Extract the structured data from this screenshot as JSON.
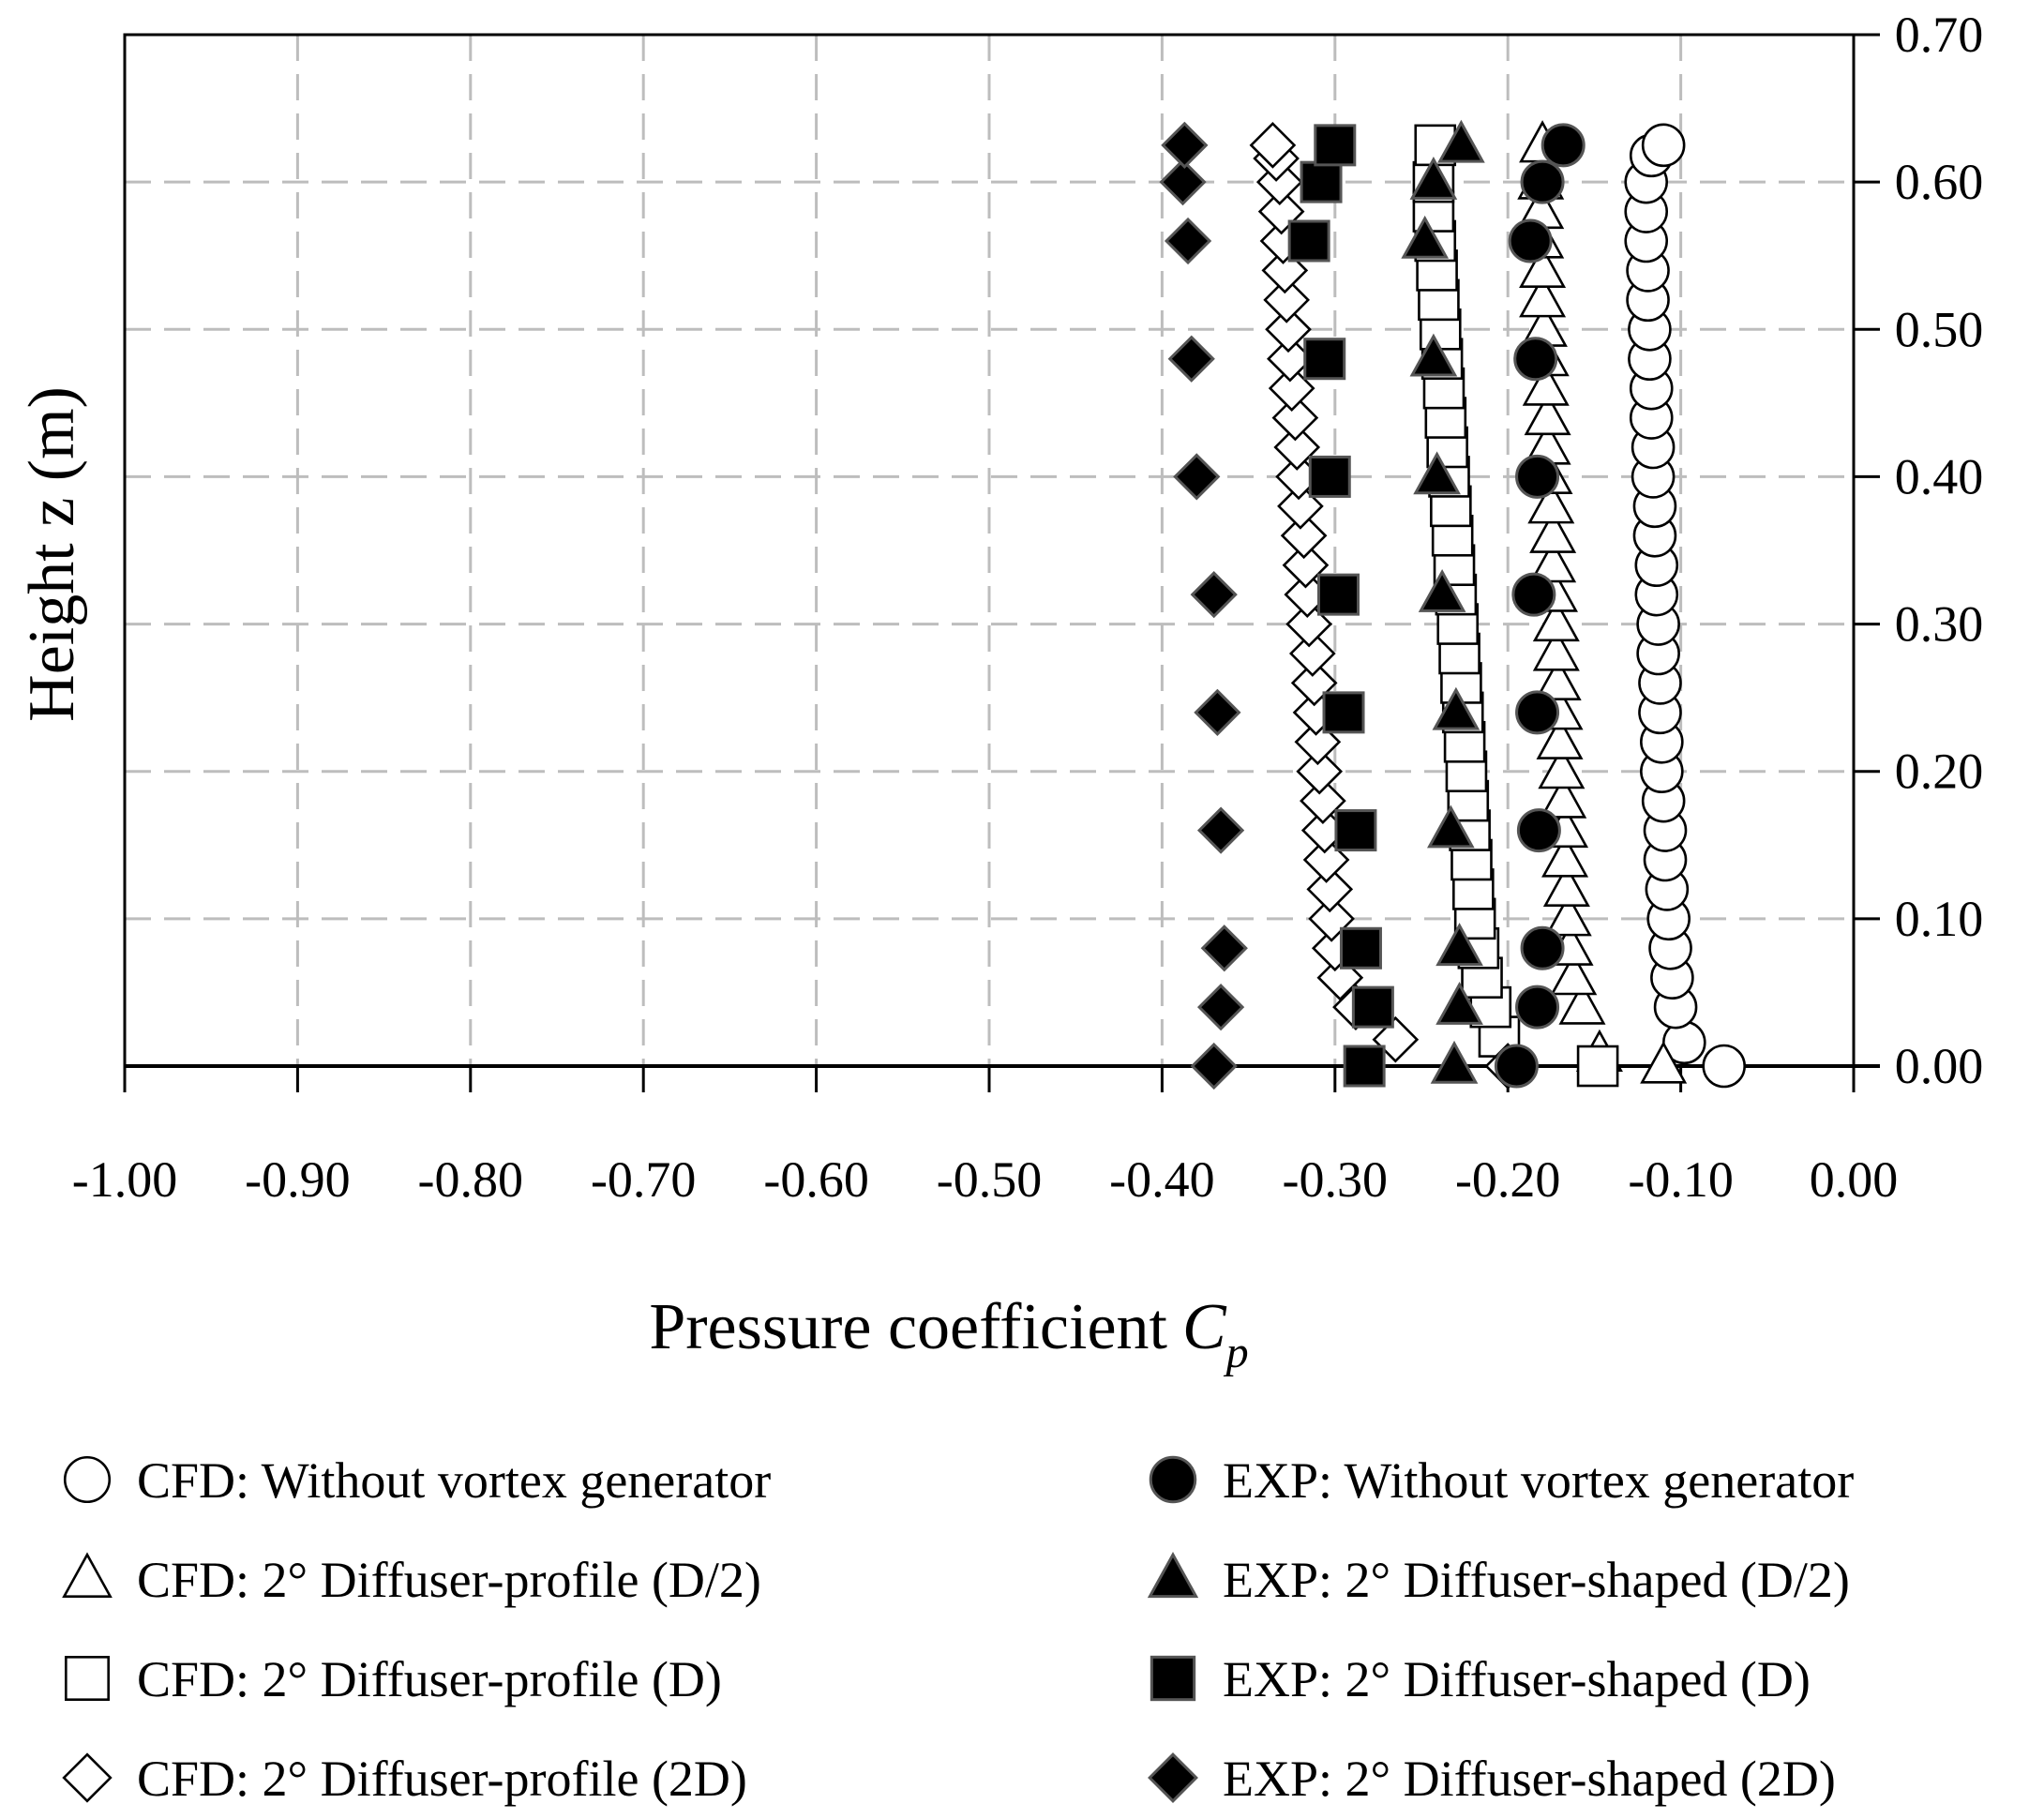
{
  "chart_data": {
    "type": "scatter",
    "title": "",
    "xlabel": "Pressure coefficient",
    "xlabel_symbol": "C",
    "xlabel_subscript": "p",
    "ylabel": "Height z (m)",
    "xlim": [
      -1.0,
      0.0
    ],
    "ylim": [
      0.0,
      0.7
    ],
    "grid": true,
    "y_axis_side": "right",
    "legend_position": "bottom",
    "x_ticks": [
      -1.0,
      -0.9,
      -0.8,
      -0.7,
      -0.6,
      -0.5,
      -0.4,
      -0.3,
      -0.2,
      -0.1,
      0.0
    ],
    "x_tick_labels": [
      "-1.00",
      "-0.90",
      "-0.80",
      "-0.70",
      "-0.60",
      "-0.50",
      "-0.40",
      "-0.30",
      "-0.20",
      "-0.10",
      "0.00"
    ],
    "y_ticks": [
      0.0,
      0.1,
      0.2,
      0.3,
      0.4,
      0.5,
      0.6,
      0.7
    ],
    "y_tick_labels": [
      "0.00",
      "0.10",
      "0.20",
      "0.30",
      "0.40",
      "0.50",
      "0.60",
      "0.70"
    ],
    "series": [
      {
        "name": "CFD: Without vortex generator",
        "marker": "circle",
        "filled": false,
        "points": [
          [
            -0.075,
            0.0
          ],
          [
            -0.098,
            0.016
          ],
          [
            -0.103,
            0.04
          ],
          [
            -0.105,
            0.06
          ],
          [
            -0.106,
            0.08
          ],
          [
            -0.107,
            0.1
          ],
          [
            -0.108,
            0.12
          ],
          [
            -0.109,
            0.14
          ],
          [
            -0.109,
            0.16
          ],
          [
            -0.11,
            0.18
          ],
          [
            -0.111,
            0.2
          ],
          [
            -0.111,
            0.22
          ],
          [
            -0.112,
            0.24
          ],
          [
            -0.112,
            0.26
          ],
          [
            -0.113,
            0.28
          ],
          [
            -0.113,
            0.3
          ],
          [
            -0.114,
            0.32
          ],
          [
            -0.114,
            0.34
          ],
          [
            -0.115,
            0.36
          ],
          [
            -0.115,
            0.38
          ],
          [
            -0.116,
            0.4
          ],
          [
            -0.116,
            0.42
          ],
          [
            -0.117,
            0.44
          ],
          [
            -0.117,
            0.46
          ],
          [
            -0.118,
            0.48
          ],
          [
            -0.118,
            0.5
          ],
          [
            -0.119,
            0.52
          ],
          [
            -0.119,
            0.54
          ],
          [
            -0.12,
            0.56
          ],
          [
            -0.12,
            0.58
          ],
          [
            -0.12,
            0.6
          ],
          [
            -0.117,
            0.618
          ],
          [
            -0.11,
            0.625
          ]
        ]
      },
      {
        "name": "CFD: 2° Diffuser-profile (D/2)",
        "marker": "triangle",
        "filled": false,
        "points": [
          [
            -0.11,
            0.0
          ],
          [
            -0.147,
            0.008
          ],
          [
            -0.157,
            0.04
          ],
          [
            -0.162,
            0.06
          ],
          [
            -0.164,
            0.08
          ],
          [
            -0.165,
            0.1
          ],
          [
            -0.166,
            0.12
          ],
          [
            -0.167,
            0.14
          ],
          [
            -0.167,
            0.16
          ],
          [
            -0.168,
            0.18
          ],
          [
            -0.169,
            0.2
          ],
          [
            -0.17,
            0.22
          ],
          [
            -0.17,
            0.24
          ],
          [
            -0.171,
            0.26
          ],
          [
            -0.172,
            0.28
          ],
          [
            -0.172,
            0.3
          ],
          [
            -0.173,
            0.32
          ],
          [
            -0.174,
            0.34
          ],
          [
            -0.174,
            0.36
          ],
          [
            -0.175,
            0.38
          ],
          [
            -0.176,
            0.4
          ],
          [
            -0.177,
            0.42
          ],
          [
            -0.177,
            0.44
          ],
          [
            -0.178,
            0.46
          ],
          [
            -0.178,
            0.48
          ],
          [
            -0.179,
            0.5
          ],
          [
            -0.18,
            0.52
          ],
          [
            -0.18,
            0.54
          ],
          [
            -0.181,
            0.56
          ],
          [
            -0.181,
            0.58
          ],
          [
            -0.181,
            0.6
          ],
          [
            -0.18,
            0.625
          ]
        ]
      },
      {
        "name": "CFD: 2° Diffuser-profile (D)",
        "marker": "square",
        "filled": false,
        "points": [
          [
            -0.148,
            0.0
          ],
          [
            -0.205,
            0.02
          ],
          [
            -0.21,
            0.04
          ],
          [
            -0.215,
            0.06
          ],
          [
            -0.217,
            0.08
          ],
          [
            -0.219,
            0.1
          ],
          [
            -0.22,
            0.12
          ],
          [
            -0.221,
            0.14
          ],
          [
            -0.222,
            0.16
          ],
          [
            -0.223,
            0.18
          ],
          [
            -0.224,
            0.2
          ],
          [
            -0.225,
            0.22
          ],
          [
            -0.226,
            0.24
          ],
          [
            -0.227,
            0.26
          ],
          [
            -0.228,
            0.28
          ],
          [
            -0.229,
            0.3
          ],
          [
            -0.23,
            0.32
          ],
          [
            -0.231,
            0.34
          ],
          [
            -0.232,
            0.36
          ],
          [
            -0.233,
            0.38
          ],
          [
            -0.234,
            0.4
          ],
          [
            -0.235,
            0.42
          ],
          [
            -0.236,
            0.44
          ],
          [
            -0.237,
            0.46
          ],
          [
            -0.238,
            0.48
          ],
          [
            -0.239,
            0.5
          ],
          [
            -0.24,
            0.52
          ],
          [
            -0.241,
            0.54
          ],
          [
            -0.242,
            0.56
          ],
          [
            -0.243,
            0.58
          ],
          [
            -0.243,
            0.6
          ],
          [
            -0.242,
            0.625
          ]
        ]
      },
      {
        "name": "CFD: 2° Diffuser-profile (2D)",
        "marker": "diamond",
        "filled": false,
        "points": [
          [
            -0.2,
            0.0
          ],
          [
            -0.265,
            0.018
          ],
          [
            -0.288,
            0.04
          ],
          [
            -0.297,
            0.06
          ],
          [
            -0.3,
            0.08
          ],
          [
            -0.302,
            0.1
          ],
          [
            -0.303,
            0.12
          ],
          [
            -0.305,
            0.14
          ],
          [
            -0.306,
            0.16
          ],
          [
            -0.307,
            0.18
          ],
          [
            -0.309,
            0.2
          ],
          [
            -0.31,
            0.22
          ],
          [
            -0.311,
            0.24
          ],
          [
            -0.312,
            0.26
          ],
          [
            -0.313,
            0.28
          ],
          [
            -0.315,
            0.3
          ],
          [
            -0.316,
            0.32
          ],
          [
            -0.317,
            0.34
          ],
          [
            -0.318,
            0.36
          ],
          [
            -0.32,
            0.38
          ],
          [
            -0.321,
            0.4
          ],
          [
            -0.322,
            0.42
          ],
          [
            -0.323,
            0.44
          ],
          [
            -0.325,
            0.46
          ],
          [
            -0.326,
            0.48
          ],
          [
            -0.327,
            0.5
          ],
          [
            -0.328,
            0.52
          ],
          [
            -0.329,
            0.54
          ],
          [
            -0.33,
            0.56
          ],
          [
            -0.331,
            0.58
          ],
          [
            -0.332,
            0.6
          ],
          [
            -0.334,
            0.616
          ],
          [
            -0.336,
            0.625
          ]
        ]
      },
      {
        "name": "EXP: Without vortex generator",
        "marker": "circle",
        "filled": true,
        "points": [
          [
            -0.195,
            0.0
          ],
          [
            -0.183,
            0.04
          ],
          [
            -0.18,
            0.08
          ],
          [
            -0.182,
            0.16
          ],
          [
            -0.183,
            0.24
          ],
          [
            -0.185,
            0.32
          ],
          [
            -0.183,
            0.4
          ],
          [
            -0.184,
            0.48
          ],
          [
            -0.187,
            0.56
          ],
          [
            -0.18,
            0.6
          ],
          [
            -0.168,
            0.625
          ]
        ]
      },
      {
        "name": "EXP: 2° Diffuser-shaped (D/2)",
        "marker": "triangle",
        "filled": true,
        "points": [
          [
            -0.231,
            0.0
          ],
          [
            -0.228,
            0.04
          ],
          [
            -0.228,
            0.08
          ],
          [
            -0.233,
            0.16
          ],
          [
            -0.23,
            0.24
          ],
          [
            -0.238,
            0.32
          ],
          [
            -0.241,
            0.4
          ],
          [
            -0.243,
            0.48
          ],
          [
            -0.248,
            0.56
          ],
          [
            -0.243,
            0.6
          ],
          [
            -0.227,
            0.625
          ]
        ]
      },
      {
        "name": "EXP: 2° Diffuser-shaped (D)",
        "marker": "square",
        "filled": true,
        "points": [
          [
            -0.283,
            0.0
          ],
          [
            -0.278,
            0.04
          ],
          [
            -0.285,
            0.08
          ],
          [
            -0.288,
            0.16
          ],
          [
            -0.295,
            0.24
          ],
          [
            -0.298,
            0.32
          ],
          [
            -0.303,
            0.4
          ],
          [
            -0.306,
            0.48
          ],
          [
            -0.315,
            0.56
          ],
          [
            -0.308,
            0.6
          ],
          [
            -0.3,
            0.625
          ]
        ]
      },
      {
        "name": "EXP: 2° Diffuser-shaped (2D)",
        "marker": "diamond",
        "filled": true,
        "points": [
          [
            -0.37,
            0.0
          ],
          [
            -0.366,
            0.04
          ],
          [
            -0.364,
            0.08
          ],
          [
            -0.366,
            0.16
          ],
          [
            -0.368,
            0.24
          ],
          [
            -0.37,
            0.32
          ],
          [
            -0.38,
            0.4
          ],
          [
            -0.383,
            0.48
          ],
          [
            -0.385,
            0.56
          ],
          [
            -0.388,
            0.6
          ],
          [
            -0.387,
            0.625
          ]
        ]
      }
    ]
  }
}
